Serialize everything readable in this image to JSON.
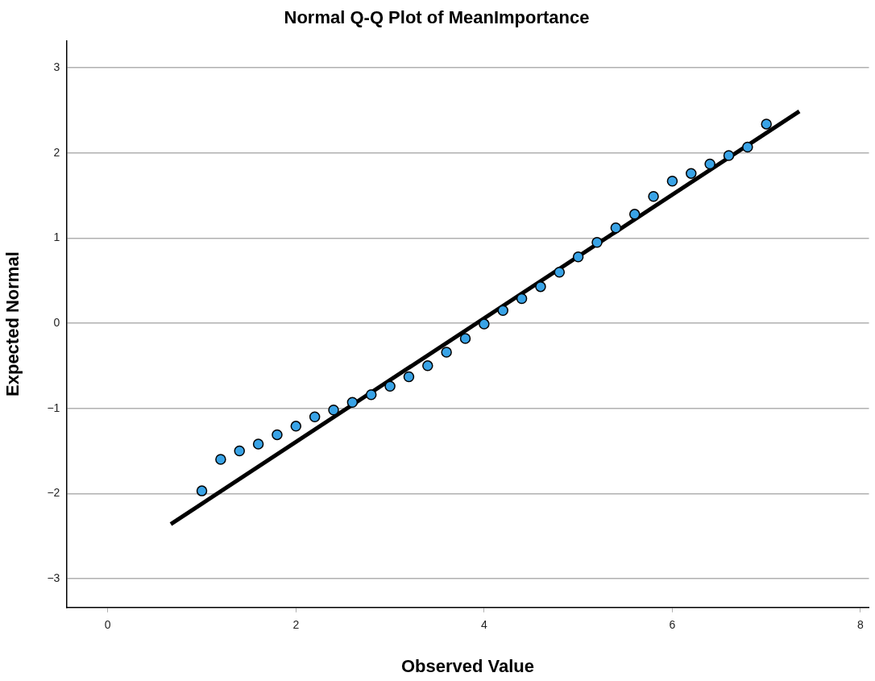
{
  "chart_data": {
    "type": "scatter",
    "title": "Normal Q-Q Plot of MeanImportance",
    "xlabel": "Observed Value",
    "ylabel": "Expected Normal",
    "xlim": [
      -0.44,
      8.09
    ],
    "xticks": [
      0,
      2,
      4,
      6,
      8
    ],
    "ylim": [
      -3.34,
      3.32
    ],
    "yticks": [
      -3,
      -2,
      -1,
      0,
      1,
      2,
      3
    ],
    "grid": "y",
    "legend": false,
    "series": [
      {
        "type": "scatter",
        "marker": "circle",
        "color": "#39a3e6",
        "x": [
          1.0,
          1.2,
          1.4,
          1.6,
          1.8,
          2.0,
          2.2,
          2.4,
          2.6,
          2.8,
          3.0,
          3.2,
          3.4,
          3.6,
          3.8,
          4.0,
          4.2,
          4.4,
          4.6,
          4.8,
          5.0,
          5.2,
          5.4,
          5.6,
          5.8,
          6.0,
          6.2,
          6.4,
          6.6,
          6.8,
          7.0
        ],
        "values": [
          -1.97,
          -1.6,
          -1.5,
          -1.42,
          -1.31,
          -1.21,
          -1.1,
          -1.02,
          -0.93,
          -0.84,
          -0.74,
          -0.63,
          -0.5,
          -0.34,
          -0.18,
          -0.01,
          0.15,
          0.29,
          0.43,
          0.6,
          0.78,
          0.95,
          1.12,
          1.28,
          1.49,
          1.67,
          1.76,
          1.87,
          1.97,
          2.07,
          2.34
        ]
      },
      {
        "type": "line",
        "marker": "none",
        "color": "#000000",
        "x": [
          0.67,
          7.35
        ],
        "values": [
          -2.36,
          2.49
        ]
      }
    ]
  }
}
